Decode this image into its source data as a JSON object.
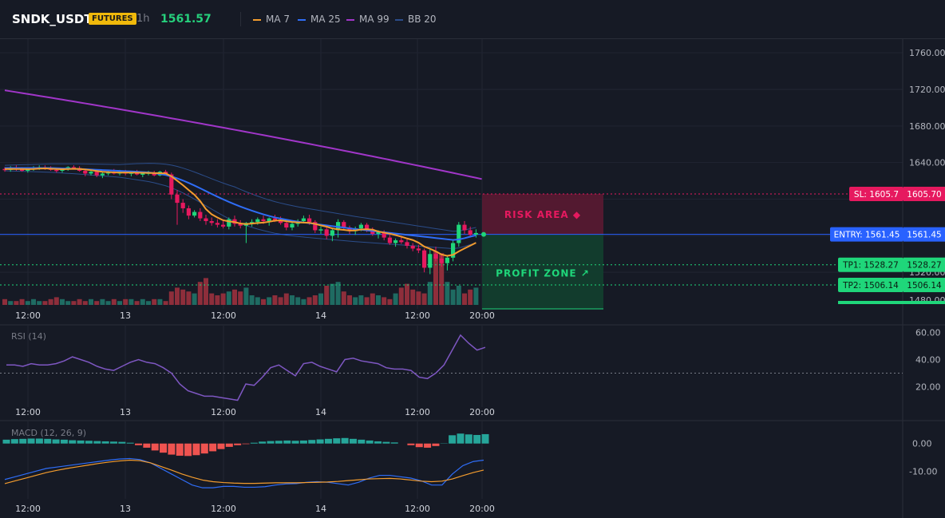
{
  "header": {
    "symbol": "SNDK_USDT",
    "badge": "FUTURES",
    "interval": "1h",
    "price": "1561.57",
    "legend": [
      {
        "name": "MA 7",
        "color": "#f39c2e"
      },
      {
        "name": "MA 25",
        "color": "#2f6df6"
      },
      {
        "name": "MA 99",
        "color": "#a136c9"
      },
      {
        "name": "BB 20",
        "color": "#2b4d8a"
      }
    ]
  },
  "chart_data": [
    {
      "type": "candlestick",
      "title": "",
      "ylim": [
        1480,
        1775
      ],
      "y_ticks": [
        "1760.00",
        "1720.00",
        "1680.00",
        "1640.00",
        "1520.00",
        "1480.00"
      ],
      "x_ticks": [
        "12:00",
        "13",
        "12:00",
        "14",
        "12:00",
        "20:00"
      ],
      "candles": [
        [
          1633,
          1635,
          1630,
          1632
        ],
        [
          1632,
          1636,
          1630,
          1634
        ],
        [
          1634,
          1637,
          1631,
          1633
        ],
        [
          1633,
          1635,
          1630,
          1631
        ],
        [
          1631,
          1634,
          1629,
          1633
        ],
        [
          1633,
          1636,
          1631,
          1634
        ],
        [
          1634,
          1637,
          1632,
          1635
        ],
        [
          1635,
          1637,
          1632,
          1634
        ],
        [
          1634,
          1636,
          1631,
          1632
        ],
        [
          1632,
          1634,
          1629,
          1631
        ],
        [
          1631,
          1634,
          1629,
          1633
        ],
        [
          1633,
          1636,
          1631,
          1635
        ],
        [
          1635,
          1637,
          1633,
          1634
        ],
        [
          1634,
          1636,
          1630,
          1631
        ],
        [
          1631,
          1633,
          1625,
          1628
        ],
        [
          1628,
          1632,
          1626,
          1630
        ],
        [
          1630,
          1632,
          1624,
          1626
        ],
        [
          1626,
          1630,
          1623,
          1628
        ],
        [
          1628,
          1632,
          1626,
          1630
        ],
        [
          1630,
          1633,
          1627,
          1628
        ],
        [
          1628,
          1632,
          1626,
          1630
        ],
        [
          1630,
          1632,
          1626,
          1628
        ],
        [
          1628,
          1631,
          1625,
          1629
        ],
        [
          1629,
          1632,
          1626,
          1627
        ],
        [
          1627,
          1630,
          1624,
          1628
        ],
        [
          1628,
          1631,
          1626,
          1629
        ],
        [
          1629,
          1631,
          1625,
          1626
        ],
        [
          1626,
          1631,
          1625,
          1630
        ],
        [
          1630,
          1632,
          1626,
          1627
        ],
        [
          1627,
          1629,
          1600,
          1605
        ],
        [
          1605,
          1610,
          1572,
          1596
        ],
        [
          1596,
          1600,
          1585,
          1590
        ],
        [
          1590,
          1593,
          1578,
          1582
        ],
        [
          1582,
          1588,
          1580,
          1586
        ],
        [
          1586,
          1590,
          1576,
          1579
        ],
        [
          1579,
          1583,
          1572,
          1576
        ],
        [
          1576,
          1580,
          1571,
          1574
        ],
        [
          1574,
          1578,
          1569,
          1572
        ],
        [
          1572,
          1576,
          1568,
          1570
        ],
        [
          1570,
          1580,
          1567,
          1578
        ],
        [
          1578,
          1582,
          1570,
          1573
        ],
        [
          1573,
          1577,
          1568,
          1571
        ],
        [
          1571,
          1575,
          1552,
          1574
        ],
        [
          1574,
          1578,
          1570,
          1575
        ],
        [
          1575,
          1580,
          1572,
          1578
        ],
        [
          1578,
          1582,
          1573,
          1576
        ],
        [
          1576,
          1580,
          1571,
          1579
        ],
        [
          1579,
          1583,
          1575,
          1577
        ],
        [
          1577,
          1581,
          1572,
          1574
        ],
        [
          1574,
          1578,
          1566,
          1569
        ],
        [
          1569,
          1575,
          1566,
          1573
        ],
        [
          1573,
          1578,
          1570,
          1576
        ],
        [
          1576,
          1582,
          1574,
          1579
        ],
        [
          1579,
          1583,
          1572,
          1575
        ],
        [
          1575,
          1577,
          1563,
          1566
        ],
        [
          1566,
          1570,
          1562,
          1567
        ],
        [
          1567,
          1569,
          1556,
          1560
        ],
        [
          1560,
          1568,
          1554,
          1566
        ],
        [
          1566,
          1578,
          1558,
          1575
        ],
        [
          1575,
          1577,
          1566,
          1569
        ],
        [
          1569,
          1571,
          1562,
          1565
        ],
        [
          1565,
          1570,
          1561,
          1568
        ],
        [
          1568,
          1574,
          1565,
          1572
        ],
        [
          1572,
          1574,
          1564,
          1567
        ],
        [
          1567,
          1569,
          1560,
          1562
        ],
        [
          1562,
          1566,
          1557,
          1564
        ],
        [
          1564,
          1566,
          1555,
          1558
        ],
        [
          1558,
          1561,
          1550,
          1552
        ],
        [
          1552,
          1557,
          1548,
          1555
        ],
        [
          1555,
          1560,
          1551,
          1553
        ],
        [
          1553,
          1556,
          1546,
          1549
        ],
        [
          1549,
          1552,
          1543,
          1546
        ],
        [
          1546,
          1550,
          1541,
          1544
        ],
        [
          1544,
          1546,
          1520,
          1525
        ],
        [
          1525,
          1545,
          1518,
          1540
        ],
        [
          1540,
          1548,
          1532,
          1535
        ],
        [
          1535,
          1540,
          1526,
          1530
        ],
        [
          1530,
          1538,
          1522,
          1536
        ],
        [
          1536,
          1556,
          1532,
          1552
        ],
        [
          1552,
          1575,
          1548,
          1572
        ],
        [
          1572,
          1576,
          1562,
          1566
        ],
        [
          1566,
          1570,
          1558,
          1561
        ],
        [
          1561,
          1567,
          1558,
          1563
        ]
      ],
      "volume": [
        3,
        2,
        2,
        3,
        2,
        3,
        2,
        2,
        3,
        4,
        3,
        2,
        2,
        3,
        2,
        3,
        2,
        3,
        2,
        3,
        2,
        3,
        3,
        2,
        3,
        2,
        3,
        3,
        2,
        7,
        9,
        8,
        7,
        6,
        12,
        14,
        6,
        5,
        6,
        7,
        8,
        7,
        9,
        5,
        4,
        3,
        4,
        5,
        4,
        6,
        5,
        4,
        3,
        4,
        5,
        6,
        10,
        11,
        12,
        7,
        5,
        4,
        5,
        4,
        6,
        5,
        4,
        3,
        6,
        9,
        11,
        8,
        7,
        6,
        12,
        28,
        27,
        12,
        8,
        10,
        6,
        8,
        9
      ],
      "ma7": [
        1633,
        1633.1,
        1633,
        1633,
        1632.8,
        1633,
        1633.4,
        1633.6,
        1633.3,
        1633,
        1632.7,
        1632.9,
        1633.2,
        1633.1,
        1632.4,
        1631.7,
        1630.8,
        1629.9,
        1629.6,
        1629.3,
        1629,
        1629.1,
        1629,
        1628.9,
        1628.8,
        1628.7,
        1628.5,
        1628.4,
        1628.2,
        1624.9,
        1620.1,
        1615.3,
        1609.9,
        1604.8,
        1597.9,
        1589.1,
        1583.4,
        1579.9,
        1576.9,
        1575.7,
        1574.9,
        1573.4,
        1572.7,
        1573.3,
        1573.9,
        1574.4,
        1575.3,
        1576.4,
        1576.9,
        1575.9,
        1575,
        1574.6,
        1574.4,
        1574.2,
        1572.9,
        1571.3,
        1569.9,
        1568,
        1566.9,
        1566.4,
        1565.6,
        1565.7,
        1566.8,
        1567.1,
        1566.6,
        1564.6,
        1563.4,
        1562.2,
        1560.7,
        1558.9,
        1557,
        1555.3,
        1552.4,
        1548.1,
        1545.7,
        1542.9,
        1539.5,
        1538,
        1539.1,
        1542.8,
        1546.1,
        1549.2,
        1552.3
      ],
      "ma25": [
        1634,
        1634,
        1634,
        1634,
        1634,
        1634,
        1634,
        1634,
        1634,
        1633.8,
        1633.6,
        1633.4,
        1633.2,
        1633,
        1632.7,
        1632.4,
        1632.1,
        1631.8,
        1631.5,
        1631.2,
        1630.9,
        1630.6,
        1630.3,
        1630,
        1629.6,
        1629.2,
        1628.5,
        1627.5,
        1626.4,
        1624.8,
        1622.8,
        1620.4,
        1617.7,
        1614.9,
        1611.9,
        1608.8,
        1605.7,
        1602.7,
        1599.8,
        1597,
        1594.4,
        1591.9,
        1589.6,
        1587.4,
        1585.3,
        1583.4,
        1581.6,
        1580,
        1578.7,
        1577.5,
        1576.4,
        1575.4,
        1574.5,
        1573.7,
        1572.9,
        1572.1,
        1571.3,
        1570.5,
        1569.7,
        1568.9,
        1568.1,
        1567.3,
        1566.6,
        1565.9,
        1565.2,
        1564.5,
        1563.8,
        1563.1,
        1562.4,
        1561.7,
        1561,
        1560.3,
        1559.6,
        1558.9,
        1558.2,
        1557.5,
        1556.8,
        1556.1,
        1555.4,
        1555.9,
        1557.3,
        1559,
        1560.5
      ],
      "ma99_start_end": [
        1719,
        1622
      ],
      "risk_area_label": "RISK AREA",
      "profit_zone_label": "PROFIT ZONE",
      "levels": [
        {
          "label": "SL: 1605.7",
          "value": "1605.70",
          "y": 1605.7,
          "color": "#e6195f"
        },
        {
          "label": "ENTRY: 1561.45",
          "value": "1561.45",
          "y": 1561.45,
          "color": "#2962ff"
        },
        {
          "label": "TP1: 1528.27",
          "value": "1528.27",
          "y": 1528.27,
          "color": "#1fd67a"
        },
        {
          "label": "TP2: 1506.14",
          "value": "1506.14",
          "y": 1506.14,
          "color": "#1fd67a"
        }
      ]
    },
    {
      "type": "line",
      "title": "RSI (14)",
      "ylim": [
        5,
        65
      ],
      "y_ticks": [
        "60.00",
        "40.00",
        "20.00"
      ],
      "reference_line": 30,
      "x_ticks": [
        "12:00",
        "13",
        "12:00",
        "14",
        "12:00",
        "20:00"
      ],
      "values": [
        36,
        36,
        35,
        37,
        36,
        36,
        37,
        39,
        42,
        40,
        38,
        35,
        33,
        32,
        35,
        38,
        40,
        38,
        37,
        34,
        30,
        22,
        17,
        15,
        13,
        13,
        12,
        11,
        10,
        22,
        21,
        27,
        34,
        36,
        32,
        28,
        37,
        38,
        35,
        33,
        31,
        40,
        41,
        39,
        38,
        37,
        34,
        33,
        33,
        32,
        27,
        26,
        30,
        36,
        47,
        58,
        52,
        47,
        49
      ]
    },
    {
      "type": "bar",
      "title": "MACD (12, 26, 9)",
      "ylim": [
        -20,
        8
      ],
      "y_ticks": [
        "0.00",
        "-10.00"
      ],
      "x_ticks": [
        "12:00",
        "13",
        "12:00",
        "14",
        "12:00",
        "20:00"
      ],
      "histogram": [
        1.4,
        1.6,
        1.7,
        1.8,
        1.8,
        1.7,
        1.5,
        1.4,
        1.2,
        1.1,
        1,
        0.9,
        0.8,
        0.7,
        0.6,
        0.3,
        -0.6,
        -1.5,
        -2.5,
        -3.3,
        -4,
        -4.4,
        -4.5,
        -4.2,
        -3.6,
        -2.8,
        -2,
        -1.2,
        -0.6,
        -0.2,
        0.3,
        0.7,
        0.9,
        1,
        1.1,
        1,
        1.1,
        1.3,
        1.5,
        1.7,
        1.9,
        2,
        1.7,
        1.4,
        1.1,
        0.8,
        0.6,
        0.4,
        0,
        -0.6,
        -1.3,
        -1.5,
        -0.9,
        0.1,
        3,
        3.6,
        3.3,
        3.1,
        3.4
      ],
      "macd": [
        -13,
        -12,
        -11,
        -10,
        -9,
        -8.5,
        -8,
        -7.5,
        -7,
        -6.5,
        -6,
        -5.6,
        -5.4,
        -5.8,
        -7,
        -9,
        -11,
        -13,
        -15,
        -16,
        -16,
        -15.5,
        -15.5,
        -15.8,
        -15.8,
        -15.6,
        -15,
        -14.6,
        -14.5,
        -14,
        -13.8,
        -14,
        -14.5,
        -15,
        -14,
        -12.5,
        -11.5,
        -11.5,
        -12,
        -12.5,
        -13.5,
        -15,
        -15,
        -11,
        -8,
        -6.5,
        -6
      ],
      "signal": [
        -14.5,
        -13.5,
        -12.5,
        -11.5,
        -10.5,
        -9.7,
        -9,
        -8.4,
        -7.8,
        -7.2,
        -6.7,
        -6.3,
        -6,
        -6.2,
        -7,
        -8.3,
        -9.6,
        -11,
        -12.2,
        -13.2,
        -13.8,
        -14.1,
        -14.3,
        -14.4,
        -14.4,
        -14.3,
        -14.2,
        -14.2,
        -14.2,
        -14.1,
        -14,
        -13.9,
        -13.7,
        -13.4,
        -13.1,
        -12.8,
        -12.7,
        -12.6,
        -12.8,
        -13.2,
        -13.6,
        -13.8,
        -13.6,
        -12.8,
        -11.6,
        -10.5,
        -9.6
      ]
    }
  ]
}
